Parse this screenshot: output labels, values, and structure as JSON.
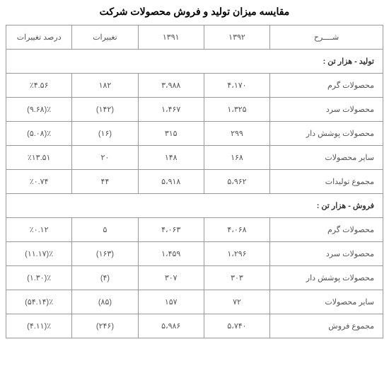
{
  "title": "مقایسه میزان تولید و فروش محصولات شرکت",
  "headers": {
    "desc": "شــــرح",
    "y1392": "۱۳۹۲",
    "y1391": "۱۳۹۱",
    "changes": "تغییرات",
    "pct": "درصد تغییرات"
  },
  "sections": [
    {
      "title": "تولید - هزار تن :",
      "rows": [
        {
          "desc": "محصولات گرم",
          "y1392": "۴،۱۷۰",
          "y1391": "۳،۹۸۸",
          "changes": "۱۸۲",
          "pct": "٪۴.۵۶"
        },
        {
          "desc": "محصولات سرد",
          "y1392": "۱،۳۲۵",
          "y1391": "۱،۴۶۷",
          "changes": "(۱۴۲)",
          "pct": "٪(۹.۶۸)"
        },
        {
          "desc": "محصولات پوشش دار",
          "y1392": "۲۹۹",
          "y1391": "۳۱۵",
          "changes": "(۱۶)",
          "pct": "٪(۵.۰۸)"
        },
        {
          "desc": "سایر محصولات",
          "y1392": "۱۶۸",
          "y1391": "۱۴۸",
          "changes": "۲۰",
          "pct": "٪۱۳.۵۱"
        },
        {
          "desc": "مجموع تولیدات",
          "y1392": "۵،۹۶۲",
          "y1391": "۵،۹۱۸",
          "changes": "۴۴",
          "pct": "٪۰.۷۴"
        }
      ]
    },
    {
      "title": "فروش - هزار تن :",
      "rows": [
        {
          "desc": "محصولات گرم",
          "y1392": "۴،۰۶۸",
          "y1391": "۴،۰۶۳",
          "changes": "۵",
          "pct": "٪۰.۱۲"
        },
        {
          "desc": "محصولات سرد",
          "y1392": "۱،۲۹۶",
          "y1391": "۱،۴۵۹",
          "changes": "(۱۶۳)",
          "pct": "٪(۱۱.۱۷)"
        },
        {
          "desc": "محصولات پوشش دار",
          "y1392": "۳۰۳",
          "y1391": "۳۰۷",
          "changes": "(۴)",
          "pct": "٪(۱.۳۰)"
        },
        {
          "desc": "سایر محصولات",
          "y1392": "۷۲",
          "y1391": "۱۵۷",
          "changes": "(۸۵)",
          "pct": "٪(۵۴.۱۴)"
        },
        {
          "desc": "مجموع فروش",
          "y1392": "۵،۷۴۰",
          "y1391": "۵،۹۸۶",
          "changes": "(۲۴۶)",
          "pct": "٪(۴.۱۱)"
        }
      ]
    }
  ]
}
